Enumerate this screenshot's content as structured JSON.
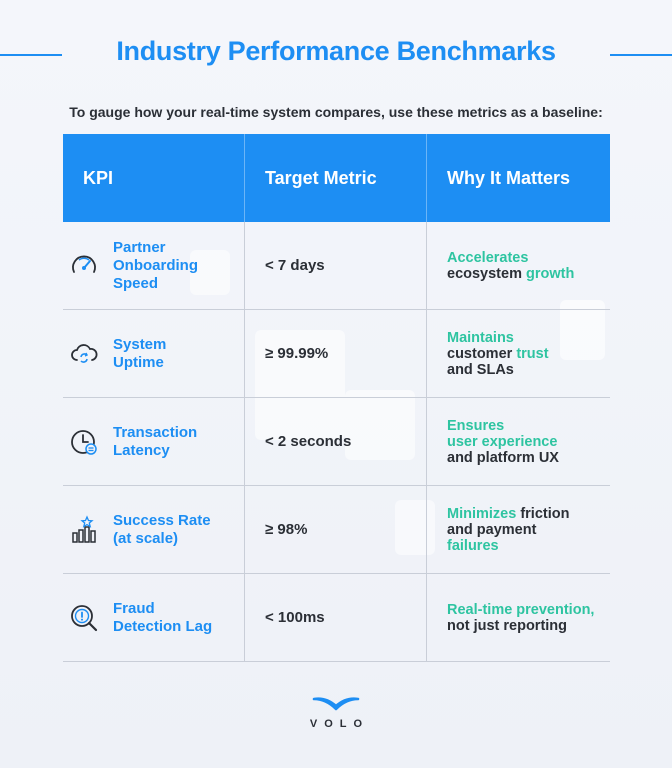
{
  "title": "Industry Performance Benchmarks",
  "subtitle": "To gauge how your real-time system compares, use these metrics as a baseline:",
  "table": {
    "headers": [
      "KPI",
      "Target Metric",
      "Why It Matters"
    ],
    "rows": [
      {
        "icon": "speedometer-icon",
        "kpi": [
          "Partner",
          "Onboarding",
          "Speed"
        ],
        "target": "< 7 days",
        "why": [
          [
            {
              "t": "Accelerates",
              "g": true
            }
          ],
          [
            {
              "t": "ecosystem ",
              "g": false
            },
            {
              "t": "growth",
              "g": true
            }
          ]
        ]
      },
      {
        "icon": "cloud-sync-icon",
        "kpi": [
          "System",
          "Uptime"
        ],
        "target": "≥ 99.99%",
        "why": [
          [
            {
              "t": "Maintains",
              "g": true
            }
          ],
          [
            {
              "t": "customer ",
              "g": false
            },
            {
              "t": "trust",
              "g": true
            }
          ],
          [
            {
              "t": "and SLAs",
              "g": false
            }
          ]
        ]
      },
      {
        "icon": "clock-icon",
        "kpi": [
          "Transaction",
          "Latency"
        ],
        "target": "< 2 seconds",
        "why": [
          [
            {
              "t": "Ensures",
              "g": true
            }
          ],
          [
            {
              "t": "user experience",
              "g": true
            }
          ],
          [
            {
              "t": "and platform UX",
              "g": false
            }
          ]
        ]
      },
      {
        "icon": "bar-chart-star-icon",
        "kpi": [
          "Success Rate",
          "(at scale)"
        ],
        "target": "≥ 98%",
        "why": [
          [
            {
              "t": "Minimizes",
              "g": true
            },
            {
              "t": " friction",
              "g": false
            }
          ],
          [
            {
              "t": "and payment",
              "g": false
            }
          ],
          [
            {
              "t": "failures",
              "g": true
            }
          ]
        ]
      },
      {
        "icon": "fraud-alert-icon",
        "kpi": [
          "Fraud",
          "Detection Lag"
        ],
        "target": "< 100ms",
        "why": [
          [
            {
              "t": "Real-time prevention,",
              "g": true
            }
          ],
          [
            {
              "t": "not just reporting",
              "g": false
            }
          ]
        ]
      }
    ]
  },
  "logo": {
    "text": "VOLO"
  },
  "colors": {
    "accent": "#1d8ef3",
    "highlight": "#2ec4a1",
    "text": "#2b2f36"
  }
}
